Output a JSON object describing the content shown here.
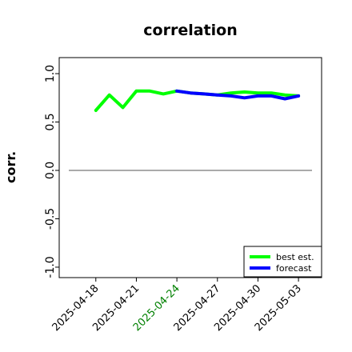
{
  "chart_data": {
    "type": "line",
    "title": "correlation",
    "ylabel": "corr.",
    "ylim": [
      -1.05,
      1.05
    ],
    "yticks": [
      "1.0",
      "0.5",
      "0.0",
      "-0.5",
      "-1.0"
    ],
    "ytick_values": [
      1.0,
      0.5,
      0.0,
      -0.5,
      -1.0
    ],
    "x": [
      "2025-04-16",
      "2025-04-17",
      "2025-04-18",
      "2025-04-19",
      "2025-04-20",
      "2025-04-21",
      "2025-04-22",
      "2025-04-23",
      "2025-04-24",
      "2025-04-25",
      "2025-04-26",
      "2025-04-27",
      "2025-04-28",
      "2025-04-29",
      "2025-04-30",
      "2025-05-01",
      "2025-05-02",
      "2025-05-03",
      "2025-05-04"
    ],
    "xticks": [
      "2025-04-18",
      "2025-04-21",
      "2025-04-24",
      "2025-04-27",
      "2025-04-30",
      "2025-05-03"
    ],
    "xtick_colors": [
      "#000000",
      "#000000",
      "#008000",
      "#000000",
      "#000000",
      "#000000"
    ],
    "zero_line": 0.0,
    "grid": false,
    "legend_position": "bottom-right",
    "series": [
      {
        "name": "best est.",
        "color": "#00ff00",
        "x": [
          "2025-04-18",
          "2025-04-19",
          "2025-04-20",
          "2025-04-21",
          "2025-04-22",
          "2025-04-23",
          "2025-04-24",
          "2025-04-25",
          "2025-04-26",
          "2025-04-27",
          "2025-04-28",
          "2025-04-29",
          "2025-04-30",
          "2025-05-01",
          "2025-05-02",
          "2025-05-03"
        ],
        "values": [
          0.62,
          0.78,
          0.65,
          0.82,
          0.82,
          0.79,
          0.82,
          0.8,
          0.79,
          0.78,
          0.8,
          0.81,
          0.8,
          0.8,
          0.78,
          0.77
        ]
      },
      {
        "name": "forecast",
        "color": "#0000ff",
        "x": [
          "2025-04-24",
          "2025-04-25",
          "2025-04-26",
          "2025-04-27",
          "2025-04-28",
          "2025-04-29",
          "2025-04-30",
          "2025-05-01",
          "2025-05-02",
          "2025-05-03"
        ],
        "values": [
          0.82,
          0.8,
          0.79,
          0.78,
          0.77,
          0.75,
          0.77,
          0.77,
          0.74,
          0.77
        ]
      }
    ]
  }
}
